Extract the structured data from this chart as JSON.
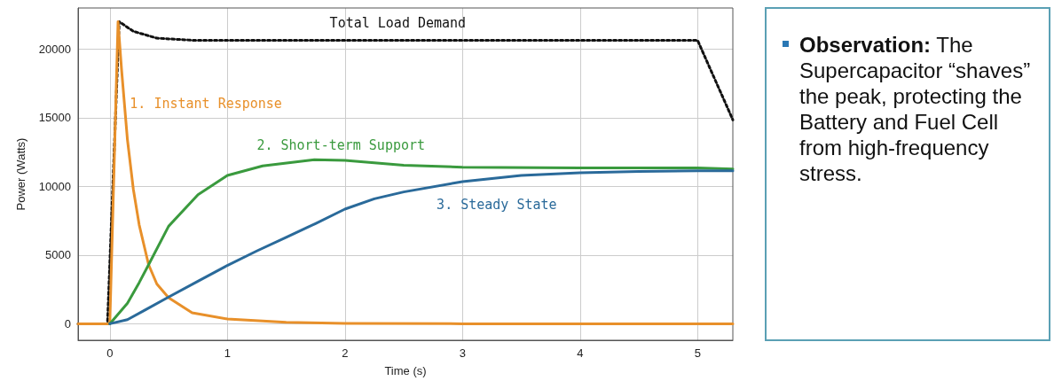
{
  "chart_data": {
    "type": "line",
    "xlabel": "Time (s)",
    "ylabel": "Power (Watts)",
    "xlim": [
      -0.27,
      5.3
    ],
    "xticks": [
      0,
      1,
      2,
      3,
      4,
      5
    ],
    "ylim": [
      -1200,
      23000
    ],
    "yticks": [
      0,
      5000,
      10000,
      15000,
      20000
    ],
    "grid": true,
    "legend": false,
    "marker": "none",
    "series": [
      {
        "name": "Total Load Demand",
        "color": "#111111",
        "line_style": "dotted",
        "x": [
          -0.27,
          -0.02,
          0.08,
          0.2,
          0.4,
          0.7,
          1.0,
          5.0,
          5.3
        ],
        "values": [
          0,
          0,
          22000,
          21300,
          20800,
          20650,
          20650,
          20650,
          14850
        ]
      },
      {
        "name": "1. Instant Response",
        "color": "#e8902a",
        "line_style": "solid",
        "x": [
          -0.27,
          0,
          0.07,
          0.1,
          0.15,
          0.2,
          0.25,
          0.33,
          0.4,
          0.5,
          0.7,
          1.0,
          1.5,
          2.0,
          3.0,
          5.3
        ],
        "values": [
          0,
          0,
          22000,
          18500,
          13400,
          9800,
          7200,
          4300,
          2900,
          1900,
          800,
          350,
          100,
          30,
          0,
          0
        ]
      },
      {
        "name": "2. Short-term Support",
        "color": "#3a9a3e",
        "line_style": "solid",
        "x": [
          0,
          0.15,
          0.25,
          0.33,
          0.5,
          0.75,
          1.0,
          1.3,
          1.74,
          2.0,
          2.5,
          3.0,
          4.0,
          5.0,
          5.3
        ],
        "values": [
          0,
          1500,
          3000,
          4300,
          7100,
          9400,
          10800,
          11500,
          11950,
          11900,
          11550,
          11400,
          11350,
          11350,
          11270
        ]
      },
      {
        "name": "3. Steady State",
        "color": "#2a6a9a",
        "line_style": "solid",
        "x": [
          0,
          0.15,
          0.3,
          0.5,
          0.75,
          1.0,
          1.25,
          1.5,
          1.75,
          2.0,
          2.25,
          2.5,
          3.0,
          3.5,
          4.0,
          4.5,
          5.0,
          5.3
        ],
        "values": [
          0,
          300,
          1000,
          1950,
          3100,
          4250,
          5300,
          6300,
          7300,
          8350,
          9100,
          9600,
          10350,
          10800,
          11000,
          11100,
          11150,
          11150
        ]
      }
    ],
    "annotations": [
      "Observation:",
      "The Supercapacitor “shaves” the peak, protecting the Battery and Fuel Cell from high-frequency stress."
    ]
  }
}
